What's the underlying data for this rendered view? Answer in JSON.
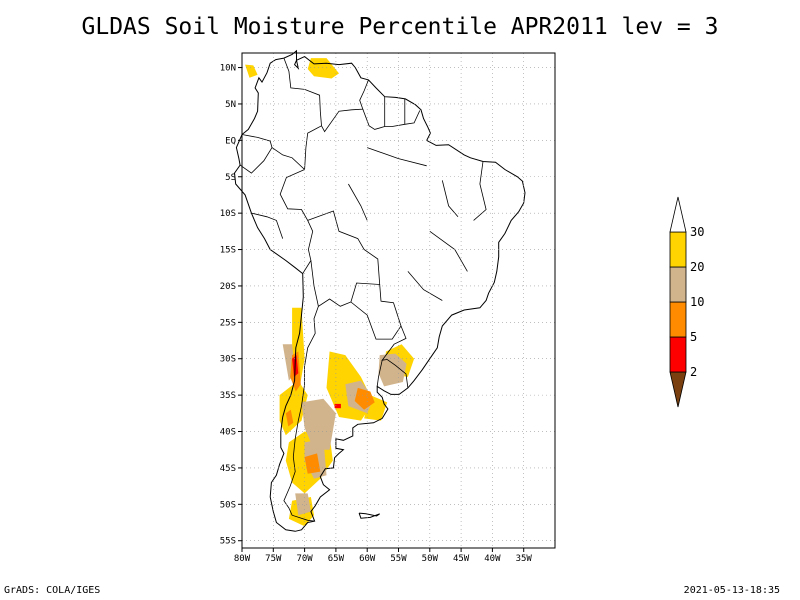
{
  "title": "GLDAS Soil Moisture Percentile APR2011 lev = 3",
  "footer_left": "GrADS: COLA/IGES",
  "footer_right": "2021-05-13-18:35",
  "map": {
    "lon_range": [
      -80,
      -30
    ],
    "lat_range": [
      -56,
      12
    ],
    "lat_ticks": [
      {
        "lat": 10,
        "label": "10N"
      },
      {
        "lat": 5,
        "label": "5N"
      },
      {
        "lat": 0,
        "label": "EQ"
      },
      {
        "lat": -5,
        "label": "5S"
      },
      {
        "lat": -10,
        "label": "10S"
      },
      {
        "lat": -15,
        "label": "15S"
      },
      {
        "lat": -20,
        "label": "20S"
      },
      {
        "lat": -25,
        "label": "25S"
      },
      {
        "lat": -30,
        "label": "30S"
      },
      {
        "lat": -35,
        "label": "35S"
      },
      {
        "lat": -40,
        "label": "40S"
      },
      {
        "lat": -45,
        "label": "45S"
      },
      {
        "lat": -50,
        "label": "50S"
      },
      {
        "lat": -55,
        "label": "55S"
      }
    ],
    "lon_ticks": [
      {
        "lon": -80,
        "label": "80W"
      },
      {
        "lon": -75,
        "label": "75W"
      },
      {
        "lon": -70,
        "label": "70W"
      },
      {
        "lon": -65,
        "label": "65W"
      },
      {
        "lon": -60,
        "label": "60W"
      },
      {
        "lon": -55,
        "label": "55W"
      },
      {
        "lon": -50,
        "label": "50W"
      },
      {
        "lon": -45,
        "label": "45W"
      },
      {
        "lon": -40,
        "label": "40W"
      },
      {
        "lon": -35,
        "label": "35W"
      }
    ],
    "grid": true
  },
  "colorbar": {
    "levels": [
      "2",
      "5",
      "10",
      "20",
      "30"
    ],
    "colors": [
      "#7a4010",
      "#ff0000",
      "#ff8c00",
      "#d2b48c",
      "#ffd400",
      "#ffffff"
    ]
  },
  "colors": {
    "cat_20_30": "#ffd400",
    "cat_10_20": "#d2b48c",
    "cat_5_10": "#ff8c00",
    "cat_2_5": "#ff0000",
    "cat_below_2": "#7a4010"
  }
}
